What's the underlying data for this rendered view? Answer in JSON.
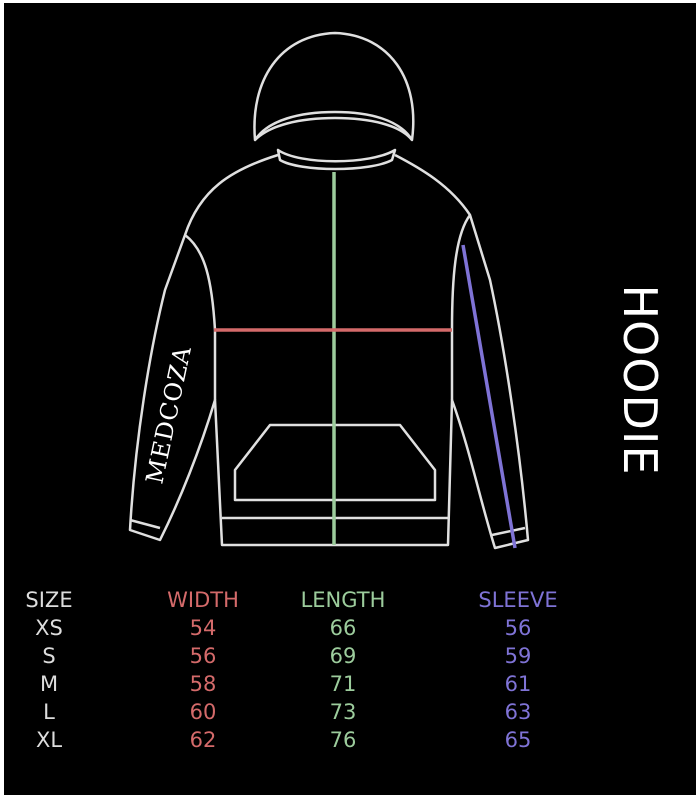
{
  "title": "HOODIE",
  "logo_text": "MEDCOZA",
  "colors": {
    "width": "#d46a6a",
    "length": "#9ccc9c",
    "sleeve": "#7f73d6",
    "outline": "#e0e0e0",
    "background": "#000000"
  },
  "table": {
    "headers": [
      "SIZE",
      "WIDTH",
      "LENGTH",
      "SLEEVE"
    ],
    "rows": [
      [
        "XS",
        "54",
        "66",
        "56"
      ],
      [
        "S",
        "56",
        "69",
        "59"
      ],
      [
        "M",
        "58",
        "71",
        "61"
      ],
      [
        "L",
        "60",
        "73",
        "63"
      ],
      [
        "XL",
        "62",
        "76",
        "65"
      ]
    ]
  }
}
